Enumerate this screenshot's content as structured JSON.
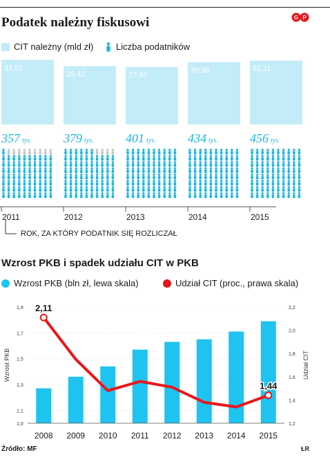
{
  "top": {
    "title": "Podatek należny fiskusowi",
    "legend": {
      "cit": "CIT należny (mld zł)",
      "taxpayers": "Liczba podatników"
    },
    "note": "ROK, ZA KTÓRY PODATNIK SIĘ ROZLICZAŁ",
    "logo": "GP"
  },
  "bottom": {
    "title": "Wzrost PKB i spadek udziału CIT w PKB",
    "legend": {
      "gdp": "Wzrost PKB (bln zł, lewa skala)",
      "cit": "Udział CIT (proc., prawa skala)"
    },
    "source": "Źródło: MF",
    "credit": "ŁR"
  },
  "colors": {
    "bar_light": "#c3ecf9",
    "people": "#1cb6e6",
    "people_faded": "#c6c6c6",
    "bar_gdp": "#1fc3ef",
    "line": "#e8171b",
    "year_num": "#1cb6e6"
  },
  "chart_data": [
    {
      "type": "bar",
      "categories": [
        "2011",
        "2012",
        "2013",
        "2014",
        "2015"
      ],
      "series": [
        {
          "name": "CIT należny (mld zł)",
          "values": [
            31.52,
            28.42,
            27.97,
            30.36,
            31.11
          ]
        },
        {
          "name": "Liczba podatników",
          "values": [
            357,
            379,
            401,
            434,
            456
          ]
        }
      ],
      "value_labels": [
        "31,52",
        "28,42",
        "27,97",
        "30,36",
        "31,11"
      ],
      "count_labels": [
        "357",
        "379",
        "401",
        "434",
        "456"
      ],
      "count_unit": "tys.",
      "title": "Podatek należny fiskusowi"
    },
    {
      "type": "bar",
      "categories": [
        "2008",
        "2009",
        "2010",
        "2011",
        "2012",
        "2013",
        "2014",
        "2015"
      ],
      "series": [
        {
          "name": "Wzrost PKB (bln zł, lewa skala)",
          "values": [
            1.27,
            1.36,
            1.44,
            1.57,
            1.63,
            1.65,
            1.71,
            1.79
          ]
        },
        {
          "name": "Udział CIT (proc., prawa skala)",
          "values": [
            2.11,
            1.75,
            1.48,
            1.56,
            1.51,
            1.38,
            1.34,
            1.44
          ]
        }
      ],
      "line_labels": {
        "2008": "2,11",
        "2015": "1,44"
      },
      "title": "Wzrost PKB i spadek udziału CIT w PKB",
      "ylabel": "Wzrost PKB",
      "y2label": "Udział CIT",
      "ylim": [
        1.0,
        1.9
      ],
      "y2lim": [
        1.2,
        2.2
      ],
      "yticks": [
        "1,0",
        "1,1",
        "1,3",
        "1,5",
        "1,7",
        "1,9"
      ],
      "y2ticks": [
        "1,2",
        "1,4",
        "1,6",
        "1,8",
        "2,0",
        "2,2"
      ]
    }
  ]
}
